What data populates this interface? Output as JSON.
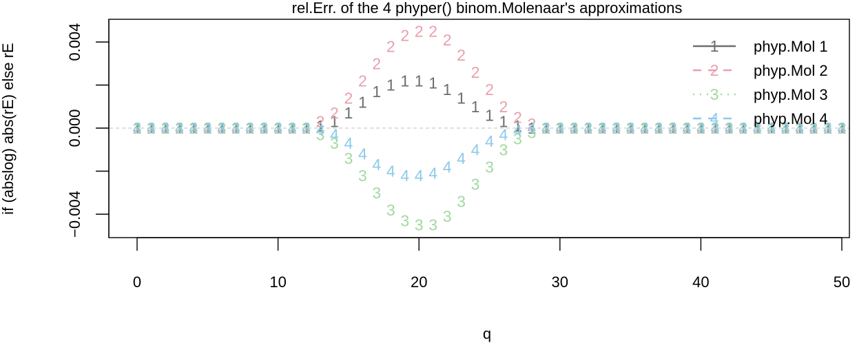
{
  "chart_data": {
    "type": "line",
    "title": "rel.Err. of the 4 phyper() binom.Molenaar's approximations",
    "xlabel": "q",
    "ylabel": "if (abslog) abs(rE) else rE",
    "xlim": [
      0,
      50
    ],
    "ylim": [
      -0.0048,
      0.0048
    ],
    "x_ticks": [
      "0",
      "10",
      "20",
      "30",
      "40",
      "50"
    ],
    "x_tick_values": [
      0,
      10,
      20,
      30,
      40,
      50
    ],
    "y_ticks": [
      "-0.004",
      "0.000",
      "0.004"
    ],
    "y_tick_values": [
      -0.004,
      0,
      0.004
    ],
    "y_minor_ticks": [
      -0.006,
      -0.002,
      0.002,
      0.006
    ],
    "zero_line": true,
    "grid": false,
    "legend_position": "top-right",
    "x": [
      0,
      1,
      2,
      3,
      4,
      5,
      6,
      7,
      8,
      9,
      10,
      11,
      12,
      13,
      14,
      15,
      16,
      17,
      18,
      19,
      20,
      21,
      22,
      23,
      24,
      25,
      26,
      27,
      28,
      29,
      30,
      31,
      32,
      33,
      34,
      35,
      36,
      37,
      38,
      39,
      40,
      41,
      42,
      43,
      44,
      45,
      46,
      47,
      48,
      49,
      50
    ],
    "series": [
      {
        "name": "phyp.Mol 1",
        "symbol": "1",
        "color": "#6e6e6e",
        "line_style": "solid",
        "values": [
          0,
          0,
          0,
          0,
          0,
          0,
          0,
          0,
          0,
          0,
          0,
          0,
          0,
          0.0001,
          0.0003,
          0.0007,
          0.0012,
          0.0017,
          0.002,
          0.0022,
          0.0022,
          0.0021,
          0.0018,
          0.0014,
          0.001,
          0.0006,
          0.0003,
          0.0001,
          0,
          0,
          0,
          0,
          0,
          0,
          0,
          0,
          0,
          0,
          0,
          0,
          0,
          0,
          0,
          0,
          0,
          0,
          0,
          0,
          0,
          0,
          0
        ]
      },
      {
        "name": "phyp.Mol 2",
        "symbol": "2",
        "color": "#e8a0ac",
        "line_style": "dashed",
        "values": [
          0,
          0,
          0,
          0,
          0,
          0,
          0,
          0,
          0,
          0,
          0,
          0,
          0,
          0.0003,
          0.0007,
          0.0014,
          0.0022,
          0.003,
          0.0038,
          0.0043,
          0.0045,
          0.0045,
          0.0041,
          0.0034,
          0.0026,
          0.0018,
          0.001,
          0.0005,
          0.0002,
          0,
          0,
          0,
          0,
          0,
          0,
          0,
          0,
          0,
          0,
          0,
          0,
          0,
          0,
          0,
          0,
          0,
          0,
          0,
          0,
          0,
          0
        ]
      },
      {
        "name": "phyp.Mol 3",
        "symbol": "3",
        "color": "#a3d9a0",
        "line_style": "dotted",
        "values": [
          0,
          0,
          0,
          0,
          0,
          0,
          0,
          0,
          0,
          0,
          0,
          0,
          0,
          -0.0003,
          -0.0007,
          -0.0014,
          -0.0022,
          -0.003,
          -0.0038,
          -0.0043,
          -0.0045,
          -0.0045,
          -0.0041,
          -0.0034,
          -0.0026,
          -0.0018,
          -0.001,
          -0.0005,
          -0.0002,
          0,
          0,
          0,
          0,
          0,
          0,
          0,
          0,
          0,
          0,
          0,
          0,
          0,
          0,
          0,
          0,
          0,
          0,
          0,
          0,
          0,
          0
        ]
      },
      {
        "name": "phyp.Mol 4",
        "symbol": "4",
        "color": "#8ccaea",
        "line_style": "dashed",
        "values": [
          0,
          0,
          0,
          0,
          0,
          0,
          0,
          0,
          0,
          0,
          0,
          0,
          0,
          -0.0001,
          -0.0003,
          -0.0007,
          -0.0012,
          -0.0017,
          -0.002,
          -0.0022,
          -0.0022,
          -0.0021,
          -0.0018,
          -0.0014,
          -0.001,
          -0.0006,
          -0.0003,
          -0.0001,
          0,
          0,
          0,
          0,
          0,
          0,
          0,
          0,
          0,
          0,
          0,
          0,
          0,
          0,
          0,
          0,
          0,
          0,
          0,
          0,
          0,
          0,
          0
        ]
      }
    ]
  }
}
